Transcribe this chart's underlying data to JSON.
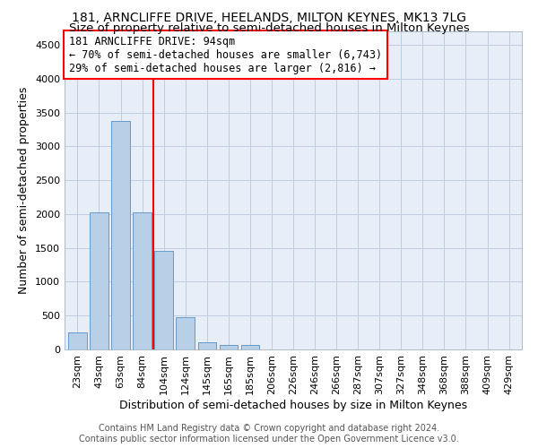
{
  "title": "181, ARNCLIFFE DRIVE, HEELANDS, MILTON KEYNES, MK13 7LG",
  "subtitle": "Size of property relative to semi-detached houses in Milton Keynes",
  "xlabel": "Distribution of semi-detached houses by size in Milton Keynes",
  "ylabel": "Number of semi-detached properties",
  "categories": [
    "23sqm",
    "43sqm",
    "63sqm",
    "84sqm",
    "104sqm",
    "124sqm",
    "145sqm",
    "165sqm",
    "185sqm",
    "206sqm",
    "226sqm",
    "246sqm",
    "266sqm",
    "287sqm",
    "307sqm",
    "327sqm",
    "348sqm",
    "368sqm",
    "388sqm",
    "409sqm",
    "429sqm"
  ],
  "values": [
    250,
    2020,
    3380,
    2020,
    1460,
    480,
    100,
    60,
    60,
    0,
    0,
    0,
    0,
    0,
    0,
    0,
    0,
    0,
    0,
    0,
    0
  ],
  "bar_color": "#b8cfe8",
  "bar_edgecolor": "#6699cc",
  "vline_position": 3.5,
  "vline_color": "red",
  "annotation_text": "181 ARNCLIFFE DRIVE: 94sqm\n← 70% of semi-detached houses are smaller (6,743)\n29% of semi-detached houses are larger (2,816) →",
  "ylim": [
    0,
    4700
  ],
  "yticks": [
    0,
    500,
    1000,
    1500,
    2000,
    2500,
    3000,
    3500,
    4000,
    4500
  ],
  "footer": "Contains HM Land Registry data © Crown copyright and database right 2024.\nContains public sector information licensed under the Open Government Licence v3.0.",
  "background_color": "#e8eef8",
  "grid_color": "#c0cce0",
  "title_fontsize": 10,
  "subtitle_fontsize": 9.5,
  "axis_label_fontsize": 9,
  "tick_fontsize": 8,
  "annotation_fontsize": 8.5,
  "footer_fontsize": 7
}
